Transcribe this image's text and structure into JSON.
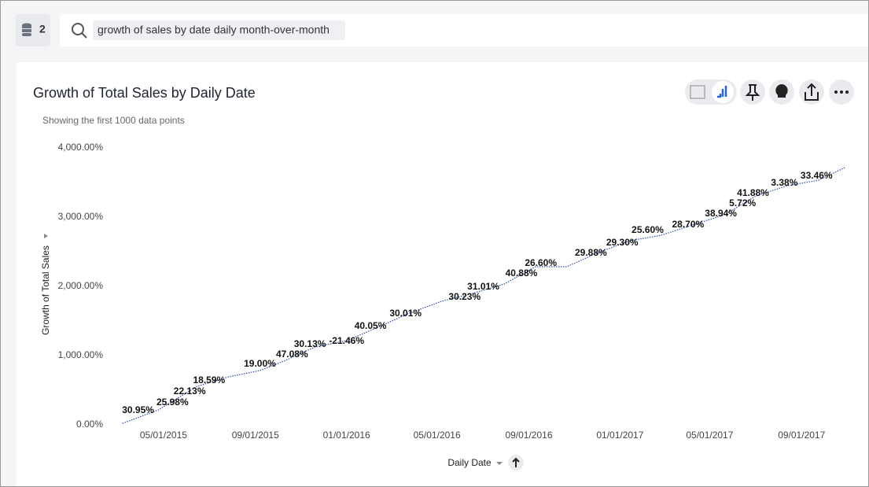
{
  "header": {
    "source_count": "2",
    "search_query": "growth of sales by date daily month-over-month"
  },
  "chart_data": {
    "type": "line",
    "title": "Growth of Total Sales by Daily Date",
    "subtitle": "Showing the first 1000 data points",
    "x_label": "Daily Date",
    "y_label": "Growth of Total Sales",
    "color": "#2a4fa8",
    "x": [
      "03/07/2015",
      "04/24/2015",
      "06/15/2015",
      "07/27/2015",
      "09/07/2015",
      "10/09/2015",
      "11/20/2015",
      "01/01/2016",
      "02/12/2016",
      "03/25/2016",
      "05/07/2016",
      "06/18/2016",
      "07/30/2016",
      "09/10/2016",
      "10/22/2016",
      "12/03/2016",
      "01/14/2017",
      "02/25/2017",
      "04/08/2017",
      "05/21/2017",
      "07/02/2017",
      "08/13/2017",
      "09/24/2017",
      "10/29/2017"
    ],
    "values": [
      20,
      216,
      557,
      693,
      784,
      920,
      1125,
      1216,
      1409,
      1614,
      1784,
      1898,
      2034,
      2284,
      2284,
      2489,
      2659,
      2739,
      2886,
      3034,
      3307,
      3455,
      3534,
      3716
    ],
    "xlim": [
      "02/28/2015",
      "11/05/2017"
    ],
    "xticks": [
      "05/01/2015",
      "09/01/2015",
      "01/01/2016",
      "05/01/2016",
      "09/01/2016",
      "01/01/2017",
      "05/01/2017",
      "09/01/2017"
    ],
    "ylim": [
      0,
      4000
    ],
    "yticks": [
      {
        "value": 0,
        "label": "0.00%"
      },
      {
        "value": 1000,
        "label": "1,000.00%"
      },
      {
        "value": 2000,
        "label": "2,000.00%"
      },
      {
        "value": 3000,
        "label": "3,000.00%"
      },
      {
        "value": 4000,
        "label": "4,000.00%"
      }
    ],
    "data_labels": [
      {
        "x": "03/28/2015",
        "y": 205,
        "label": "30.95%"
      },
      {
        "x": "05/13/2015",
        "y": 318,
        "label": "25.98%"
      },
      {
        "x": "06/05/2015",
        "y": 477,
        "label": "22.13%"
      },
      {
        "x": "07/01/2015",
        "y": 636,
        "label": "18.59%"
      },
      {
        "x": "09/07/2015",
        "y": 875,
        "label": "19.00%"
      },
      {
        "x": "10/20/2015",
        "y": 1011,
        "label": "47.08%"
      },
      {
        "x": "11/13/2015",
        "y": 1159,
        "label": "30.13%"
      },
      {
        "x": "01/01/2016",
        "y": 1205,
        "label": "-21.46%"
      },
      {
        "x": "02/02/2016",
        "y": 1420,
        "label": "40.05%"
      },
      {
        "x": "03/20/2016",
        "y": 1602,
        "label": "30.01%"
      },
      {
        "x": "06/07/2016",
        "y": 1841,
        "label": "30.23%"
      },
      {
        "x": "07/02/2016",
        "y": 1989,
        "label": "31.01%"
      },
      {
        "x": "08/22/2016",
        "y": 2182,
        "label": "40.88%"
      },
      {
        "x": "09/17/2016",
        "y": 2330,
        "label": "26.60%"
      },
      {
        "x": "11/23/2016",
        "y": 2477,
        "label": "29.88%"
      },
      {
        "x": "01/04/2017",
        "y": 2625,
        "label": "29.30%"
      },
      {
        "x": "02/07/2017",
        "y": 2807,
        "label": "25.60%"
      },
      {
        "x": "04/02/2017",
        "y": 2886,
        "label": "28.70%"
      },
      {
        "x": "05/16/2017",
        "y": 3045,
        "label": "38.94%"
      },
      {
        "x": "06/14/2017",
        "y": 3193,
        "label": "5.72%"
      },
      {
        "x": "06/28/2017",
        "y": 3341,
        "label": "41.88%"
      },
      {
        "x": "08/09/2017",
        "y": 3489,
        "label": "3.38%"
      },
      {
        "x": "09/21/2017",
        "y": 3591,
        "label": "33.46%"
      }
    ]
  }
}
